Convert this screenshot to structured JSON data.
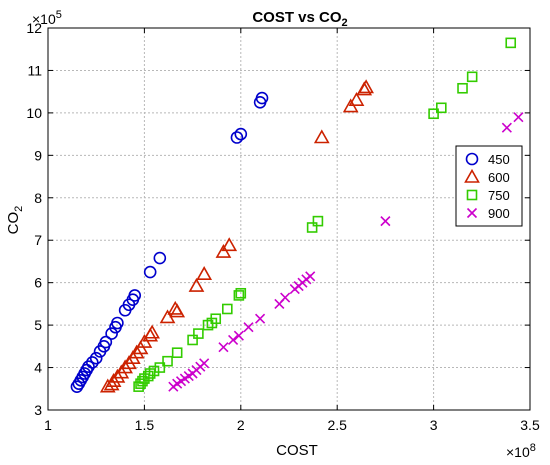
{
  "chart_data": {
    "type": "scatter",
    "title": "COST vs CO",
    "title_sub": "2",
    "xlabel": "COST",
    "ylabel": "CO",
    "ylabel_sub": "2",
    "x_multiplier_base": "×10",
    "x_multiplier_exp": "8",
    "y_multiplier_base": "×10",
    "y_multiplier_exp": "5",
    "xlim": [
      1,
      3.5
    ],
    "ylim": [
      3,
      12
    ],
    "xticks": [
      "1",
      "1.5",
      "2",
      "2.5",
      "3",
      "3.5"
    ],
    "yticks": [
      "3",
      "4",
      "5",
      "6",
      "7",
      "8",
      "9",
      "10",
      "11",
      "12"
    ],
    "grid": true,
    "legend_position": "right-middle",
    "series": [
      {
        "name": "450",
        "marker": "circle",
        "color": "#0000cc",
        "points": [
          [
            1.15,
            3.55
          ],
          [
            1.16,
            3.62
          ],
          [
            1.17,
            3.7
          ],
          [
            1.18,
            3.78
          ],
          [
            1.19,
            3.86
          ],
          [
            1.2,
            3.94
          ],
          [
            1.21,
            4.02
          ],
          [
            1.23,
            4.12
          ],
          [
            1.25,
            4.22
          ],
          [
            1.27,
            4.38
          ],
          [
            1.29,
            4.5
          ],
          [
            1.3,
            4.6
          ],
          [
            1.33,
            4.8
          ],
          [
            1.35,
            4.95
          ],
          [
            1.36,
            5.05
          ],
          [
            1.4,
            5.35
          ],
          [
            1.42,
            5.48
          ],
          [
            1.44,
            5.6
          ],
          [
            1.45,
            5.7
          ],
          [
            1.53,
            6.25
          ],
          [
            1.58,
            6.58
          ],
          [
            1.98,
            9.42
          ],
          [
            2.0,
            9.5
          ],
          [
            2.1,
            10.25
          ],
          [
            2.11,
            10.35
          ]
        ]
      },
      {
        "name": "600",
        "marker": "triangle",
        "color": "#cc2200",
        "points": [
          [
            1.31,
            3.55
          ],
          [
            1.33,
            3.6
          ],
          [
            1.34,
            3.68
          ],
          [
            1.36,
            3.78
          ],
          [
            1.38,
            3.88
          ],
          [
            1.4,
            4.0
          ],
          [
            1.42,
            4.1
          ],
          [
            1.44,
            4.22
          ],
          [
            1.46,
            4.35
          ],
          [
            1.48,
            4.45
          ],
          [
            1.5,
            4.6
          ],
          [
            1.53,
            4.75
          ],
          [
            1.54,
            4.82
          ],
          [
            1.62,
            5.18
          ],
          [
            1.66,
            5.38
          ],
          [
            1.67,
            5.32
          ],
          [
            1.77,
            5.92
          ],
          [
            1.81,
            6.2
          ],
          [
            1.91,
            6.72
          ],
          [
            1.94,
            6.88
          ],
          [
            2.42,
            9.42
          ],
          [
            2.57,
            10.15
          ],
          [
            2.6,
            10.3
          ],
          [
            2.64,
            10.55
          ],
          [
            2.65,
            10.6
          ]
        ]
      },
      {
        "name": "750",
        "marker": "square",
        "color": "#33cc00",
        "points": [
          [
            1.47,
            3.55
          ],
          [
            1.48,
            3.62
          ],
          [
            1.49,
            3.68
          ],
          [
            1.5,
            3.74
          ],
          [
            1.52,
            3.8
          ],
          [
            1.53,
            3.86
          ],
          [
            1.55,
            3.92
          ],
          [
            1.58,
            4.0
          ],
          [
            1.62,
            4.15
          ],
          [
            1.67,
            4.35
          ],
          [
            1.75,
            4.65
          ],
          [
            1.78,
            4.8
          ],
          [
            1.83,
            5.0
          ],
          [
            1.85,
            5.05
          ],
          [
            1.87,
            5.15
          ],
          [
            1.93,
            5.38
          ],
          [
            1.99,
            5.7
          ],
          [
            2.0,
            5.75
          ],
          [
            2.37,
            7.3
          ],
          [
            2.4,
            7.45
          ],
          [
            3.0,
            9.98
          ],
          [
            3.04,
            10.12
          ],
          [
            3.15,
            10.58
          ],
          [
            3.2,
            10.85
          ],
          [
            3.4,
            11.65
          ]
        ]
      },
      {
        "name": "900",
        "marker": "x",
        "color": "#cc00cc",
        "points": [
          [
            1.65,
            3.55
          ],
          [
            1.67,
            3.62
          ],
          [
            1.69,
            3.68
          ],
          [
            1.71,
            3.74
          ],
          [
            1.73,
            3.8
          ],
          [
            1.75,
            3.86
          ],
          [
            1.77,
            3.94
          ],
          [
            1.79,
            4.02
          ],
          [
            1.81,
            4.1
          ],
          [
            1.91,
            4.48
          ],
          [
            1.96,
            4.65
          ],
          [
            1.99,
            4.75
          ],
          [
            2.04,
            4.95
          ],
          [
            2.1,
            5.15
          ],
          [
            2.2,
            5.5
          ],
          [
            2.23,
            5.65
          ],
          [
            2.28,
            5.85
          ],
          [
            2.3,
            5.92
          ],
          [
            2.32,
            6.0
          ],
          [
            2.34,
            6.08
          ],
          [
            2.36,
            6.15
          ],
          [
            2.75,
            7.45
          ],
          [
            3.38,
            9.65
          ],
          [
            3.44,
            9.9
          ]
        ]
      }
    ]
  }
}
